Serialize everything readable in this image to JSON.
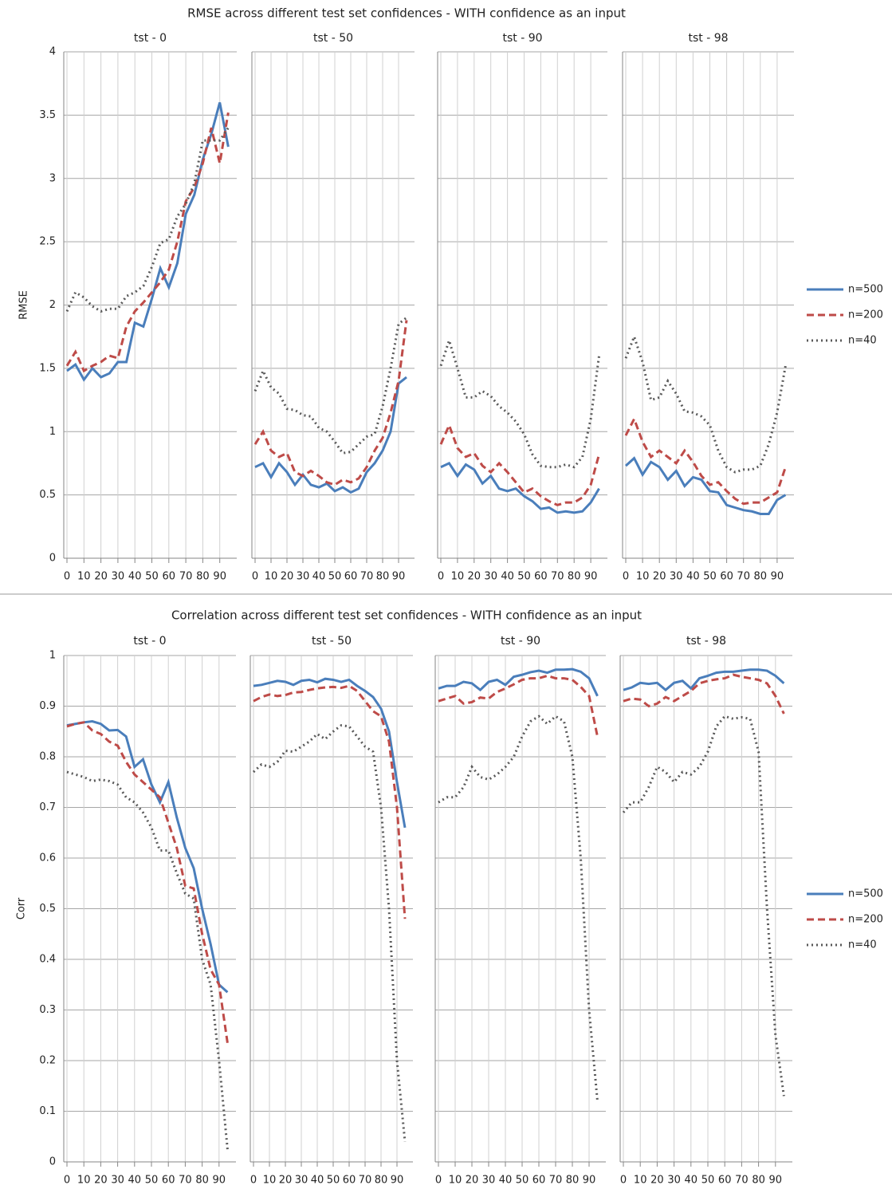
{
  "chart_data": [
    {
      "type": "line",
      "title": "RMSE across different test set confidences - WITH confidence as an input",
      "ylabel": "RMSE",
      "x": [
        0,
        5,
        10,
        15,
        20,
        25,
        30,
        35,
        40,
        45,
        50,
        55,
        60,
        65,
        70,
        75,
        80,
        85,
        90,
        95
      ],
      "xlim": [
        0,
        100
      ],
      "xticks": [
        0,
        10,
        20,
        30,
        40,
        50,
        60,
        70,
        80,
        90
      ],
      "ylim": [
        0,
        4
      ],
      "yticks": [
        0,
        0.5,
        1,
        1.5,
        2,
        2.5,
        3,
        3.5,
        4
      ],
      "grid": true,
      "legend": "right",
      "series": [
        {
          "name": "n=500",
          "color": "#4a7ebb",
          "style": "solid"
        },
        {
          "name": "n=200",
          "color": "#be4b48",
          "style": "dashed"
        },
        {
          "name": "n=40",
          "color": "#595959",
          "style": "dotted"
        }
      ],
      "panels": [
        {
          "title": "tst - 0",
          "values": [
            [
              1.48,
              1.53,
              1.41,
              1.5,
              1.43,
              1.46,
              1.55,
              1.55,
              1.86,
              1.83,
              2.05,
              2.29,
              2.14,
              2.33,
              2.72,
              2.87,
              3.15,
              3.35,
              3.6,
              3.25
            ],
            [
              1.52,
              1.63,
              1.48,
              1.52,
              1.55,
              1.6,
              1.58,
              1.83,
              1.95,
              2.02,
              2.1,
              2.18,
              2.28,
              2.5,
              2.82,
              2.93,
              3.12,
              3.4,
              3.12,
              3.52
            ],
            [
              1.95,
              2.1,
              2.06,
              1.99,
              1.95,
              1.97,
              1.97,
              2.07,
              2.1,
              2.15,
              2.3,
              2.49,
              2.52,
              2.7,
              2.8,
              2.96,
              3.3,
              3.3,
              3.3,
              3.4
            ]
          ]
        },
        {
          "title": "tst - 50",
          "values": [
            [
              0.72,
              0.75,
              0.64,
              0.75,
              0.68,
              0.58,
              0.66,
              0.58,
              0.56,
              0.59,
              0.53,
              0.56,
              0.52,
              0.55,
              0.68,
              0.75,
              0.85,
              1.0,
              1.38,
              1.43
            ],
            [
              0.9,
              1.0,
              0.85,
              0.8,
              0.83,
              0.68,
              0.65,
              0.69,
              0.65,
              0.6,
              0.58,
              0.62,
              0.6,
              0.63,
              0.72,
              0.85,
              0.95,
              1.15,
              1.4,
              1.88
            ],
            [
              1.32,
              1.48,
              1.35,
              1.3,
              1.18,
              1.17,
              1.13,
              1.12,
              1.03,
              1.0,
              0.92,
              0.83,
              0.84,
              0.9,
              0.96,
              0.98,
              1.2,
              1.5,
              1.85,
              1.9
            ]
          ]
        },
        {
          "title": "tst - 90",
          "values": [
            [
              0.72,
              0.75,
              0.65,
              0.74,
              0.7,
              0.59,
              0.65,
              0.55,
              0.53,
              0.55,
              0.49,
              0.45,
              0.39,
              0.4,
              0.36,
              0.37,
              0.36,
              0.37,
              0.44,
              0.55
            ],
            [
              0.9,
              1.05,
              0.87,
              0.8,
              0.83,
              0.73,
              0.68,
              0.75,
              0.68,
              0.6,
              0.52,
              0.55,
              0.49,
              0.45,
              0.42,
              0.44,
              0.44,
              0.48,
              0.58,
              0.82
            ],
            [
              1.52,
              1.72,
              1.5,
              1.27,
              1.27,
              1.32,
              1.28,
              1.2,
              1.15,
              1.08,
              0.98,
              0.82,
              0.73,
              0.72,
              0.72,
              0.74,
              0.72,
              0.8,
              1.1,
              1.6
            ]
          ]
        },
        {
          "title": "tst - 98",
          "values": [
            [
              0.73,
              0.79,
              0.66,
              0.76,
              0.72,
              0.62,
              0.69,
              0.57,
              0.64,
              0.62,
              0.53,
              0.52,
              0.42,
              0.4,
              0.38,
              0.37,
              0.35,
              0.35,
              0.46,
              0.5
            ],
            [
              0.97,
              1.1,
              0.92,
              0.8,
              0.85,
              0.8,
              0.75,
              0.85,
              0.76,
              0.65,
              0.58,
              0.6,
              0.53,
              0.47,
              0.43,
              0.44,
              0.44,
              0.48,
              0.52,
              0.72
            ],
            [
              1.58,
              1.75,
              1.55,
              1.25,
              1.27,
              1.4,
              1.3,
              1.16,
              1.15,
              1.12,
              1.05,
              0.85,
              0.72,
              0.68,
              0.7,
              0.7,
              0.73,
              0.9,
              1.15,
              1.52
            ]
          ]
        }
      ]
    },
    {
      "type": "line",
      "title": "Correlation across different test set confidences - WITH confidence as an input",
      "ylabel": "Corr",
      "x": [
        0,
        5,
        10,
        15,
        20,
        25,
        30,
        35,
        40,
        45,
        50,
        55,
        60,
        65,
        70,
        75,
        80,
        85,
        90,
        95
      ],
      "xlim": [
        0,
        100
      ],
      "xticks": [
        0,
        10,
        20,
        30,
        40,
        50,
        60,
        70,
        80,
        90
      ],
      "ylim": [
        0,
        1
      ],
      "yticks": [
        0,
        0.1,
        0.2,
        0.3,
        0.4,
        0.5,
        0.6,
        0.7,
        0.8,
        0.9,
        1
      ],
      "grid": true,
      "legend": "right",
      "series": [
        {
          "name": "n=500",
          "color": "#4a7ebb",
          "style": "solid"
        },
        {
          "name": "n=200",
          "color": "#be4b48",
          "style": "dashed"
        },
        {
          "name": "n=40",
          "color": "#595959",
          "style": "dotted"
        }
      ],
      "panels": [
        {
          "title": "tst - 0",
          "values": [
            [
              0.862,
              0.865,
              0.868,
              0.87,
              0.865,
              0.852,
              0.853,
              0.84,
              0.78,
              0.795,
              0.745,
              0.71,
              0.75,
              0.68,
              0.62,
              0.58,
              0.5,
              0.43,
              0.35,
              0.335
            ],
            [
              0.86,
              0.865,
              0.868,
              0.852,
              0.845,
              0.83,
              0.822,
              0.79,
              0.765,
              0.75,
              0.735,
              0.72,
              0.67,
              0.62,
              0.545,
              0.54,
              0.45,
              0.38,
              0.35,
              0.235
            ],
            [
              0.77,
              0.765,
              0.76,
              0.752,
              0.755,
              0.752,
              0.745,
              0.72,
              0.71,
              0.69,
              0.66,
              0.615,
              0.615,
              0.57,
              0.53,
              0.52,
              0.4,
              0.35,
              0.2,
              0.025
            ]
          ]
        },
        {
          "title": "tst - 50",
          "values": [
            [
              0.94,
              0.942,
              0.946,
              0.95,
              0.948,
              0.942,
              0.95,
              0.952,
              0.947,
              0.954,
              0.952,
              0.948,
              0.952,
              0.94,
              0.93,
              0.918,
              0.895,
              0.85,
              0.75,
              0.66
            ],
            [
              0.91,
              0.918,
              0.923,
              0.92,
              0.922,
              0.927,
              0.928,
              0.932,
              0.935,
              0.937,
              0.938,
              0.936,
              0.94,
              0.93,
              0.91,
              0.89,
              0.88,
              0.83,
              0.7,
              0.48
            ],
            [
              0.77,
              0.785,
              0.78,
              0.79,
              0.812,
              0.81,
              0.82,
              0.83,
              0.845,
              0.835,
              0.85,
              0.862,
              0.86,
              0.84,
              0.82,
              0.81,
              0.7,
              0.5,
              0.2,
              0.04
            ]
          ]
        },
        {
          "title": "tst - 90",
          "values": [
            [
              0.935,
              0.94,
              0.94,
              0.948,
              0.945,
              0.932,
              0.948,
              0.952,
              0.942,
              0.958,
              0.962,
              0.967,
              0.97,
              0.966,
              0.972,
              0.972,
              0.973,
              0.968,
              0.955,
              0.92
            ],
            [
              0.91,
              0.915,
              0.92,
              0.905,
              0.908,
              0.917,
              0.915,
              0.928,
              0.935,
              0.943,
              0.952,
              0.955,
              0.955,
              0.96,
              0.955,
              0.955,
              0.952,
              0.938,
              0.92,
              0.84
            ],
            [
              0.71,
              0.72,
              0.72,
              0.74,
              0.78,
              0.76,
              0.755,
              0.765,
              0.78,
              0.8,
              0.84,
              0.87,
              0.88,
              0.865,
              0.88,
              0.87,
              0.8,
              0.6,
              0.3,
              0.12
            ]
          ]
        },
        {
          "title": "tst - 98",
          "values": [
            [
              0.932,
              0.937,
              0.946,
              0.944,
              0.946,
              0.932,
              0.946,
              0.95,
              0.935,
              0.955,
              0.96,
              0.966,
              0.968,
              0.968,
              0.97,
              0.972,
              0.972,
              0.97,
              0.96,
              0.945
            ],
            [
              0.91,
              0.915,
              0.913,
              0.9,
              0.905,
              0.918,
              0.91,
              0.92,
              0.93,
              0.945,
              0.95,
              0.953,
              0.955,
              0.962,
              0.958,
              0.955,
              0.952,
              0.945,
              0.92,
              0.885
            ],
            [
              0.69,
              0.71,
              0.71,
              0.74,
              0.78,
              0.77,
              0.75,
              0.77,
              0.765,
              0.78,
              0.81,
              0.86,
              0.88,
              0.875,
              0.878,
              0.875,
              0.81,
              0.5,
              0.25,
              0.13
            ]
          ]
        }
      ]
    }
  ]
}
